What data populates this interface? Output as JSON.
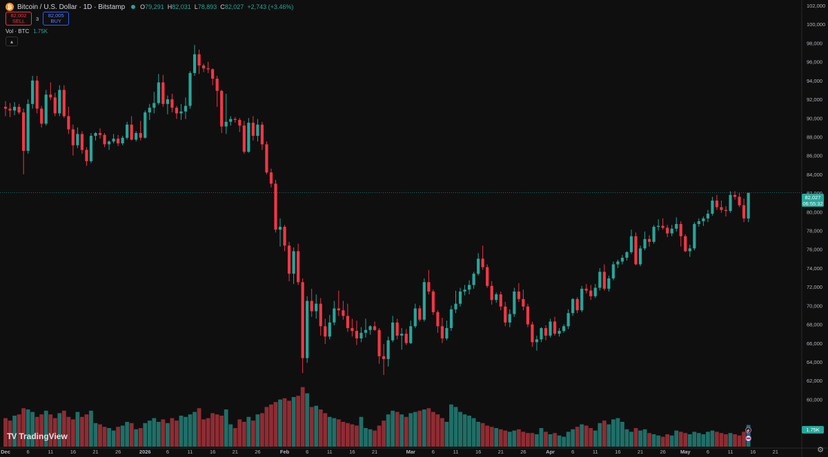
{
  "header": {
    "symbol_title": "Bitcoin / U.S. Dollar · 1D · Bitstamp",
    "open_label": "O",
    "open": "79,291",
    "high_label": "H",
    "high": "82,031",
    "low_label": "L",
    "low": "78,893",
    "close_label": "C",
    "close": "82,027",
    "change": "+2,743 (+3.46%)"
  },
  "trade": {
    "sell_price": "82,002",
    "sell_label": "SELL",
    "spread": "3",
    "buy_price": "82,005",
    "buy_label": "BUY"
  },
  "volume_legend": {
    "label": "Vol · BTC",
    "value": "1.75K"
  },
  "price_tag": {
    "price": "82,027",
    "countdown": "06:55:32"
  },
  "volume_tag": "1.75K",
  "brand": "TradingView",
  "colors": {
    "up": "#26a69a",
    "down": "#f23645",
    "up_vol": "#1f6f68",
    "down_vol": "#8f2c33",
    "background": "#0f0f0f"
  },
  "icons": [
    "bitcoin-icon",
    "market-status-dot",
    "collapse-chevron-icon",
    "lightning-icon",
    "flag-icon",
    "settings-gear-icon"
  ],
  "chart_data": {
    "type": "candlestick",
    "y_ticks": [
      "102,000",
      "100,000",
      "98,000",
      "96,000",
      "94,000",
      "92,000",
      "90,000",
      "88,000",
      "86,000",
      "84,000",
      "82,000",
      "80,000",
      "78,000",
      "76,000",
      "74,000",
      "72,000",
      "70,000",
      "68,000",
      "66,000",
      "64,000",
      "62,000",
      "60,000"
    ],
    "ylim": [
      59000,
      102000
    ],
    "x_ticks": [
      {
        "label": "Dec",
        "day": 0
      },
      {
        "label": "6",
        "day": 5
      },
      {
        "label": "11",
        "day": 10
      },
      {
        "label": "16",
        "day": 15
      },
      {
        "label": "21",
        "day": 20
      },
      {
        "label": "26",
        "day": 25
      },
      {
        "label": "2026",
        "day": 31
      },
      {
        "label": "6",
        "day": 36
      },
      {
        "label": "11",
        "day": 41
      },
      {
        "label": "16",
        "day": 46
      },
      {
        "label": "21",
        "day": 51
      },
      {
        "label": "26",
        "day": 56
      },
      {
        "label": "Feb",
        "day": 62
      },
      {
        "label": "6",
        "day": 67
      },
      {
        "label": "11",
        "day": 72
      },
      {
        "label": "16",
        "day": 77
      },
      {
        "label": "21",
        "day": 82
      },
      {
        "label": "Mar",
        "day": 90
      },
      {
        "label": "6",
        "day": 95
      },
      {
        "label": "11",
        "day": 100
      },
      {
        "label": "16",
        "day": 105
      },
      {
        "label": "21",
        "day": 110
      },
      {
        "label": "26",
        "day": 115
      },
      {
        "label": "Apr",
        "day": 121
      },
      {
        "label": "6",
        "day": 126
      },
      {
        "label": "11",
        "day": 131
      },
      {
        "label": "16",
        "day": 136
      },
      {
        "label": "21",
        "day": 141
      },
      {
        "label": "26",
        "day": 146
      },
      {
        "label": "May",
        "day": 151
      },
      {
        "label": "6",
        "day": 156
      },
      {
        "label": "11",
        "day": 161
      },
      {
        "label": "16",
        "day": 166
      },
      {
        "label": "21",
        "day": 171
      }
    ],
    "volume_axis_max": 5,
    "candles": [
      [
        91200,
        91800,
        90200,
        91000,
        2.3
      ],
      [
        91000,
        91600,
        90100,
        90800,
        2.1
      ],
      [
        90800,
        91700,
        90300,
        91200,
        2.5
      ],
      [
        91200,
        91500,
        90400,
        90600,
        2.6
      ],
      [
        90600,
        91000,
        84000,
        86500,
        3.1
      ],
      [
        86500,
        92000,
        86200,
        91500,
        3.0
      ],
      [
        91500,
        94500,
        91000,
        94000,
        2.8
      ],
      [
        94000,
        94500,
        90500,
        91000,
        2.4
      ],
      [
        91000,
        91300,
        89000,
        89400,
        2.6
      ],
      [
        89400,
        93000,
        89200,
        92500,
        2.9
      ],
      [
        92500,
        93800,
        91900,
        92200,
        2.6
      ],
      [
        92200,
        92700,
        90200,
        90500,
        2.3
      ],
      [
        90500,
        93500,
        90200,
        93000,
        2.7
      ],
      [
        93000,
        93500,
        90000,
        90200,
        2.9
      ],
      [
        90200,
        91200,
        88300,
        88800,
        2.4
      ],
      [
        88800,
        89300,
        86000,
        87100,
        2.2
      ],
      [
        87100,
        89000,
        86800,
        88300,
        2.8
      ],
      [
        88300,
        88600,
        86200,
        86600,
        2.4
      ],
      [
        86600,
        86900,
        84900,
        85400,
        2.6
      ],
      [
        85400,
        88400,
        85200,
        88100,
        2.9
      ],
      [
        88100,
        88500,
        87600,
        88400,
        1.9
      ],
      [
        88400,
        88900,
        87800,
        88200,
        1.8
      ],
      [
        88200,
        88400,
        86900,
        87200,
        1.6
      ],
      [
        87200,
        87600,
        86600,
        87500,
        1.5
      ],
      [
        87500,
        88300,
        87300,
        87800,
        1.3
      ],
      [
        87800,
        88200,
        87000,
        87300,
        1.6
      ],
      [
        87300,
        88100,
        87100,
        87900,
        1.7
      ],
      [
        87900,
        89600,
        87700,
        89300,
        2.0
      ],
      [
        89300,
        90200,
        87600,
        87700,
        1.9
      ],
      [
        87700,
        88600,
        87500,
        88400,
        1.4
      ],
      [
        88400,
        89700,
        87600,
        87900,
        1.5
      ],
      [
        87900,
        90800,
        87800,
        90600,
        1.9
      ],
      [
        90600,
        91500,
        89800,
        91100,
        2.1
      ],
      [
        91100,
        92800,
        90500,
        91600,
        2.3
      ],
      [
        91600,
        94700,
        91400,
        93800,
        2.0
      ],
      [
        93800,
        94600,
        91200,
        91500,
        2.2
      ],
      [
        91500,
        92400,
        90400,
        92000,
        1.9
      ],
      [
        92000,
        92600,
        90600,
        91100,
        2.3
      ],
      [
        91100,
        91300,
        89900,
        90500,
        2.1
      ],
      [
        90500,
        91500,
        89800,
        90700,
        2.5
      ],
      [
        90700,
        92200,
        89900,
        91300,
        2.4
      ],
      [
        91300,
        95000,
        91000,
        94800,
        2.6
      ],
      [
        94800,
        97800,
        94500,
        96800,
        2.8
      ],
      [
        96800,
        97300,
        94700,
        95600,
        3.1
      ],
      [
        95600,
        95800,
        94900,
        95300,
        2.2
      ],
      [
        95300,
        96000,
        94800,
        95200,
        2.3
      ],
      [
        95200,
        95300,
        93500,
        94200,
        2.7
      ],
      [
        94200,
        94500,
        91200,
        92900,
        2.6
      ],
      [
        92900,
        93000,
        88400,
        89100,
        2.5
      ],
      [
        89100,
        92600,
        88300,
        89600,
        3.0
      ],
      [
        89600,
        90200,
        89200,
        89900,
        1.8
      ],
      [
        89900,
        90100,
        89500,
        89800,
        1.5
      ],
      [
        89800,
        90000,
        88500,
        89200,
        2.2
      ],
      [
        89200,
        89700,
        86200,
        86400,
        2.0
      ],
      [
        86400,
        90000,
        86300,
        89500,
        2.4
      ],
      [
        89500,
        90200,
        87600,
        88100,
        2.1
      ],
      [
        88100,
        89900,
        87500,
        89300,
        2.6
      ],
      [
        89300,
        89600,
        86600,
        87200,
        2.7
      ],
      [
        87200,
        87500,
        84000,
        84200,
        3.2
      ],
      [
        84200,
        84600,
        82600,
        83000,
        3.4
      ],
      [
        83000,
        83400,
        77800,
        78100,
        3.6
      ],
      [
        78100,
        79300,
        76300,
        78400,
        3.8
      ],
      [
        78400,
        78600,
        75800,
        76400,
        3.9
      ],
      [
        76400,
        76800,
        72600,
        73400,
        3.7
      ],
      [
        73400,
        76200,
        72300,
        75800,
        4.0
      ],
      [
        75800,
        76600,
        72200,
        72500,
        4.1
      ],
      [
        72500,
        72900,
        62800,
        64400,
        4.8
      ],
      [
        64400,
        71000,
        63900,
        70500,
        4.3
      ],
      [
        70500,
        71800,
        68800,
        69400,
        3.2
      ],
      [
        69400,
        71200,
        68600,
        70200,
        3.3
      ],
      [
        70200,
        70800,
        66800,
        67800,
        3.0
      ],
      [
        67800,
        68600,
        65900,
        66700,
        2.7
      ],
      [
        66700,
        69000,
        66400,
        68200,
        2.4
      ],
      [
        68200,
        70500,
        67900,
        69700,
        2.3
      ],
      [
        69700,
        71600,
        68900,
        69500,
        2.2
      ],
      [
        69500,
        70500,
        68500,
        68900,
        2.0
      ],
      [
        68900,
        70200,
        67200,
        67600,
        1.9
      ],
      [
        67600,
        68600,
        66700,
        67300,
        1.8
      ],
      [
        67300,
        68400,
        65800,
        66500,
        1.7
      ],
      [
        66500,
        67700,
        66100,
        67100,
        2.4
      ],
      [
        67100,
        68600,
        66600,
        67400,
        1.5
      ],
      [
        67400,
        67900,
        66900,
        67800,
        1.4
      ],
      [
        67800,
        68300,
        67300,
        67400,
        1.3
      ],
      [
        67400,
        67600,
        63800,
        64600,
        1.7
      ],
      [
        64600,
        65900,
        62600,
        64300,
        2.1
      ],
      [
        64300,
        66700,
        63500,
        66300,
        2.6
      ],
      [
        66300,
        68900,
        66100,
        68200,
        2.9
      ],
      [
        68200,
        68600,
        66400,
        66800,
        2.8
      ],
      [
        66800,
        67600,
        65300,
        67000,
        2.6
      ],
      [
        67000,
        67500,
        65800,
        66000,
        2.4
      ],
      [
        66000,
        68400,
        65900,
        67800,
        2.7
      ],
      [
        67800,
        70200,
        67600,
        69700,
        2.8
      ],
      [
        69700,
        70000,
        68300,
        68500,
        2.9
      ],
      [
        68500,
        72900,
        68300,
        72500,
        3.0
      ],
      [
        72500,
        73800,
        71200,
        71500,
        3.1
      ],
      [
        71500,
        71700,
        69000,
        69300,
        2.8
      ],
      [
        69300,
        69500,
        67100,
        67800,
        2.6
      ],
      [
        67800,
        68700,
        66000,
        66500,
        2.3
      ],
      [
        66500,
        68400,
        66300,
        67600,
        2.0
      ],
      [
        67600,
        70000,
        67300,
        69600,
        3.4
      ],
      [
        69600,
        71600,
        69200,
        70200,
        3.2
      ],
      [
        70200,
        71900,
        69900,
        71500,
        2.8
      ],
      [
        71500,
        72200,
        71100,
        71700,
        2.6
      ],
      [
        71700,
        72700,
        71200,
        72200,
        2.5
      ],
      [
        72200,
        73600,
        71800,
        73400,
        2.3
      ],
      [
        73400,
        75600,
        73200,
        75000,
        2.0
      ],
      [
        75000,
        76400,
        73800,
        74100,
        1.9
      ],
      [
        74100,
        74400,
        71900,
        72100,
        1.7
      ],
      [
        72100,
        72600,
        70100,
        70600,
        1.6
      ],
      [
        70600,
        71400,
        70300,
        71200,
        1.5
      ],
      [
        71200,
        71500,
        69500,
        69900,
        1.4
      ],
      [
        69900,
        70400,
        67800,
        68200,
        1.3
      ],
      [
        68200,
        69600,
        67700,
        69100,
        1.2
      ],
      [
        69100,
        71900,
        68800,
        71500,
        1.3
      ],
      [
        71500,
        72400,
        70400,
        70700,
        1.4
      ],
      [
        70700,
        71700,
        69500,
        69900,
        1.2
      ],
      [
        69900,
        70200,
        67700,
        68000,
        1.1
      ],
      [
        68000,
        68300,
        65600,
        66100,
        1.1
      ],
      [
        66100,
        66800,
        65200,
        66400,
        1.0
      ],
      [
        66400,
        67700,
        66100,
        67600,
        1.5
      ],
      [
        67600,
        67900,
        66300,
        66800,
        1.2
      ],
      [
        66800,
        68600,
        66600,
        68300,
        1.0
      ],
      [
        68300,
        68800,
        66800,
        67000,
        1.1
      ],
      [
        67000,
        67600,
        66700,
        67300,
        0.9
      ],
      [
        67300,
        68000,
        67100,
        67800,
        0.8
      ],
      [
        67800,
        69600,
        67500,
        69200,
        1.2
      ],
      [
        69200,
        70800,
        68900,
        70700,
        1.4
      ],
      [
        70700,
        70900,
        69200,
        69500,
        1.6
      ],
      [
        69500,
        72100,
        69300,
        71800,
        1.8
      ],
      [
        71800,
        72300,
        71300,
        71600,
        1.7
      ],
      [
        71600,
        72200,
        70600,
        71000,
        1.5
      ],
      [
        71000,
        72300,
        70800,
        71900,
        1.3
      ],
      [
        71900,
        74000,
        71600,
        73600,
        1.9
      ],
      [
        73600,
        74400,
        71600,
        71800,
        2.1
      ],
      [
        71800,
        73200,
        71500,
        72900,
        1.8
      ],
      [
        72900,
        74700,
        72700,
        74400,
        2.2
      ],
      [
        74400,
        74900,
        74000,
        74700,
        2.3
      ],
      [
        74700,
        75400,
        74400,
        75100,
        2.0
      ],
      [
        75100,
        75800,
        74800,
        75700,
        1.4
      ],
      [
        75700,
        78100,
        75500,
        77400,
        1.2
      ],
      [
        77400,
        77800,
        74300,
        74400,
        1.5
      ],
      [
        74400,
        76400,
        74200,
        76100,
        1.3
      ],
      [
        76100,
        77900,
        75900,
        77100,
        1.4
      ],
      [
        77100,
        77500,
        76300,
        76800,
        1.1
      ],
      [
        76800,
        78600,
        76600,
        78400,
        1.0
      ],
      [
        78400,
        79200,
        78000,
        78500,
        0.9
      ],
      [
        78500,
        79300,
        78100,
        78300,
        0.8
      ],
      [
        78300,
        78600,
        77300,
        77700,
        1.0
      ],
      [
        77700,
        78600,
        77400,
        78200,
        0.9
      ],
      [
        78200,
        79400,
        77900,
        78700,
        1.3
      ],
      [
        78700,
        79000,
        76300,
        77400,
        1.2
      ],
      [
        77400,
        77600,
        75700,
        75800,
        1.1
      ],
      [
        75800,
        76500,
        75200,
        76100,
        1.0
      ],
      [
        76100,
        78900,
        75900,
        78700,
        1.2
      ],
      [
        78700,
        79300,
        78400,
        79000,
        1.1
      ],
      [
        79000,
        79500,
        78500,
        79300,
        1.0
      ],
      [
        79300,
        80200,
        78900,
        79800,
        1.2
      ],
      [
        79800,
        81600,
        79600,
        81200,
        1.3
      ],
      [
        81200,
        81800,
        80200,
        80500,
        1.2
      ],
      [
        80500,
        81200,
        79900,
        80200,
        1.1
      ],
      [
        80200,
        80600,
        79500,
        80100,
        1.0
      ],
      [
        80100,
        82200,
        79900,
        81800,
        1.1
      ],
      [
        81800,
        82200,
        81300,
        81600,
        1.0
      ],
      [
        81600,
        82000,
        80500,
        80700,
        0.9
      ],
      [
        80700,
        81400,
        78900,
        79300,
        1.2
      ],
      [
        79291,
        82031,
        78893,
        82027,
        1.75
      ]
    ],
    "last_price": 82027
  }
}
